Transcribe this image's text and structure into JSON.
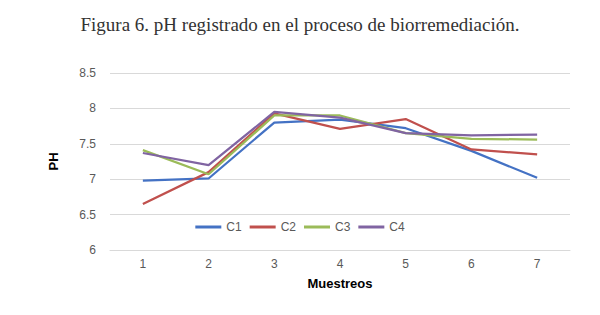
{
  "chart_data": {
    "type": "line",
    "title": "Figura 6. pH registrado en el proceso de biorremediación.",
    "x_label": "Muestreos",
    "y_label": "PH",
    "categories": [
      "1",
      "2",
      "3",
      "4",
      "5",
      "6",
      "7"
    ],
    "series": [
      {
        "name": "C1",
        "color": "#4472c4",
        "values": [
          6.98,
          7.01,
          7.8,
          7.84,
          7.72,
          7.4,
          7.02
        ]
      },
      {
        "name": "C2",
        "color": "#c0504d",
        "values": [
          6.65,
          7.1,
          7.93,
          7.71,
          7.85,
          7.42,
          7.35
        ]
      },
      {
        "name": "C3",
        "color": "#9bbb59",
        "values": [
          7.41,
          7.07,
          7.9,
          7.9,
          7.65,
          7.57,
          7.56
        ]
      },
      {
        "name": "C4",
        "color": "#8064a2",
        "values": [
          7.37,
          7.2,
          7.95,
          7.87,
          7.65,
          7.62,
          7.63
        ]
      }
    ],
    "ylim": [
      6,
      8.5
    ],
    "yticks": [
      6,
      6.5,
      7,
      7.5,
      8,
      8.5
    ],
    "grid": true,
    "legend": "bottom"
  }
}
